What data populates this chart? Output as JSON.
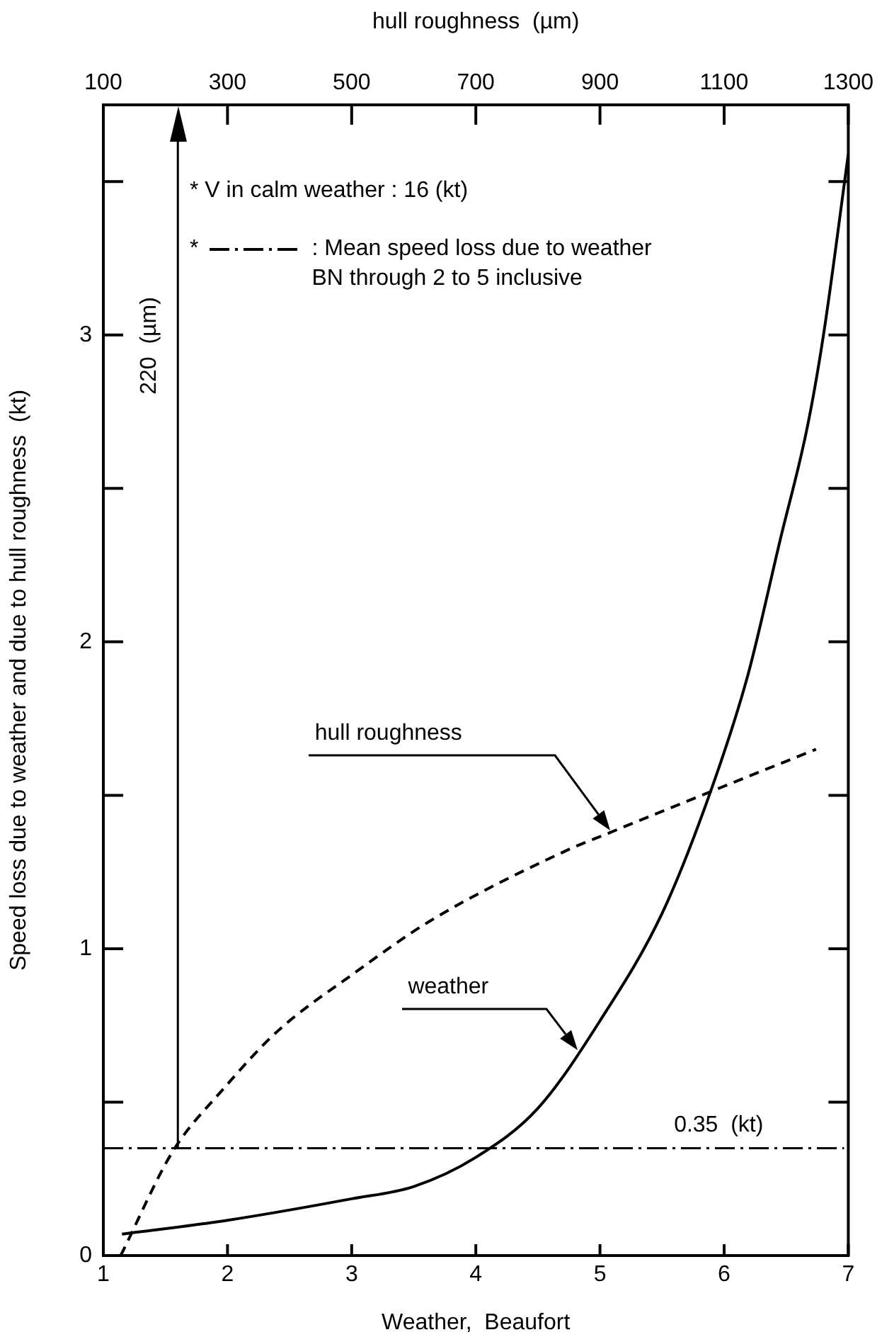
{
  "chart_data": {
    "type": "line",
    "xlabel": "Weather,  Beaufort",
    "x2label": "hull roughness  (µm)",
    "ylabel": "Speed loss due to weather and due to hull roughness  (kt)",
    "xlim": [
      1,
      7
    ],
    "xticks": [
      1,
      2,
      3,
      4,
      5,
      6,
      7
    ],
    "x2lim": [
      100,
      1300
    ],
    "x2ticks": [
      100,
      300,
      500,
      700,
      900,
      1100,
      1300
    ],
    "ylim": [
      0,
      3.75
    ],
    "yticks": [
      0,
      {
        "value": 0.5,
        "label": null
      },
      1,
      {
        "value": 1.5,
        "label": null
      },
      2,
      {
        "value": 2.5,
        "label": null
      },
      3,
      {
        "value": 3.5,
        "label": null
      }
    ],
    "grid": false,
    "legend": false,
    "marker": "none",
    "series": [
      {
        "color": "#000000",
        "line_style": "solid",
        "x": [
          1.15,
          2,
          3,
          3.5,
          4,
          4.5,
          5,
          5.5,
          5.88,
          6.19,
          6.45,
          6.67,
          6.8,
          7
        ],
        "values": [
          0.07,
          0.115,
          0.185,
          0.225,
          0.32,
          0.48,
          0.765,
          1.115,
          1.5,
          1.89,
          2.33,
          2.7,
          3.0,
          3.59
        ]
      },
      {
        "color": "#000000",
        "line_style": "dashed",
        "x": [
          1.14,
          1.56,
          1.96,
          2.4,
          3.02,
          3.63,
          4.73,
          5.09,
          5.88,
          6.74
        ],
        "values": [
          0,
          0.34,
          0.54,
          0.73,
          0.92,
          1.09,
          1.32,
          1.38,
          1.51,
          1.65
        ]
      }
    ],
    "ref_lines": [
      {
        "axis": "y",
        "value": 0.35,
        "label": "0.35  (kt)",
        "line_style": "dashdot",
        "color": "#000000"
      },
      {
        "axis": "x2",
        "value": 220,
        "label": "220  (µm)",
        "line_style": "solid",
        "color": "#000000"
      }
    ],
    "annotations": [
      "* V in calm weather : 16 (kt)",
      "*",
      ": Mean speed loss due to weather\nBN through 2 to 5 inclusive",
      "hull roughness",
      "weather"
    ]
  }
}
